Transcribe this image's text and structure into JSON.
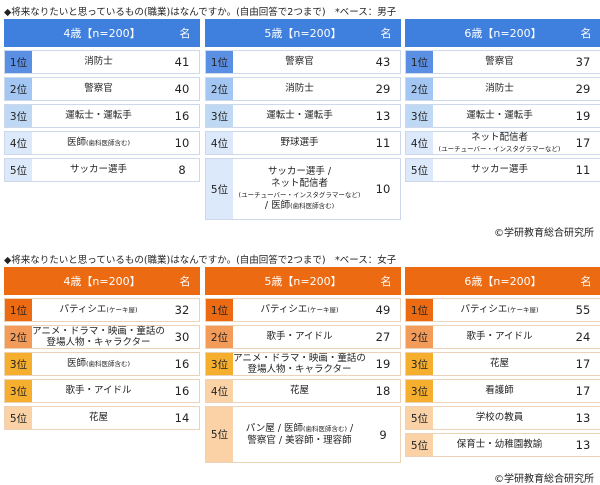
{
  "boys": {
    "title": "◆将来なりたいと思っているもの(職業)はなんですか。(自由回答で2つまで)　*ベース：男子",
    "copyright": "©学研教育総合研究所",
    "colors": {
      "header": "#3f7fdd",
      "rank": [
        "#5a8fe3",
        "#a3c7f2",
        "#bfd9f5",
        "#dce9fa",
        "#dce9fa"
      ],
      "border": "#cdd9ea"
    },
    "tables": [
      {
        "header": "4歳【n=200】",
        "unit": "名",
        "rows": [
          {
            "rank": "1位",
            "lines": [
              {
                "main": "消防士"
              }
            ],
            "count": "41"
          },
          {
            "rank": "2位",
            "lines": [
              {
                "main": "警察官"
              }
            ],
            "count": "40"
          },
          {
            "rank": "3位",
            "lines": [
              {
                "main": "運転士・運転手"
              }
            ],
            "count": "16"
          },
          {
            "rank": "4位",
            "lines": [
              {
                "main": "医師",
                "small": "(歯科医師含む)"
              }
            ],
            "count": "10"
          },
          {
            "rank": "5位",
            "lines": [
              {
                "main": "サッカー選手"
              }
            ],
            "count": "8"
          }
        ]
      },
      {
        "header": "5歳【n=200】",
        "unit": "名",
        "rows": [
          {
            "rank": "1位",
            "lines": [
              {
                "main": "警察官"
              }
            ],
            "count": "43"
          },
          {
            "rank": "2位",
            "lines": [
              {
                "main": "消防士"
              }
            ],
            "count": "29"
          },
          {
            "rank": "3位",
            "lines": [
              {
                "main": "運転士・運転手"
              }
            ],
            "count": "13"
          },
          {
            "rank": "4位",
            "lines": [
              {
                "main": "野球選手"
              }
            ],
            "count": "11"
          },
          {
            "rank": "5位",
            "lines": [
              {
                "main": "サッカー選手 /"
              },
              {
                "main": "ネット配信者"
              },
              {
                "small": "(ユーチューバー・インスタグラマーなど)"
              },
              {
                "main": "/ 医師",
                "small": "(歯科医師含む)"
              }
            ],
            "count": "10"
          }
        ]
      },
      {
        "header": "6歳【n=200】",
        "unit": "名",
        "rows": [
          {
            "rank": "1位",
            "lines": [
              {
                "main": "警察官"
              }
            ],
            "count": "37"
          },
          {
            "rank": "2位",
            "lines": [
              {
                "main": "消防士"
              }
            ],
            "count": "29"
          },
          {
            "rank": "3位",
            "lines": [
              {
                "main": "運転士・運転手"
              }
            ],
            "count": "19"
          },
          {
            "rank": "4位",
            "lines": [
              {
                "main": "ネット配信者"
              },
              {
                "small": "(ユーチューバー・インスタグラマーなど)"
              }
            ],
            "count": "17"
          },
          {
            "rank": "5位",
            "lines": [
              {
                "main": "サッカー選手"
              }
            ],
            "count": "11"
          }
        ]
      }
    ]
  },
  "girls": {
    "title": "◆将来なりたいと思っているもの(職業)はなんですか。(自由回答で2つまで)　*ベース：女子",
    "copyright": "©学研教育総合研究所",
    "colors": {
      "header": "#ec6a12",
      "rank": [
        "#ec6a12",
        "#f39b58",
        "#f5ae2e",
        "#fad2a6",
        "#fad2a6"
      ],
      "border": "#ecd3b8"
    },
    "tables": [
      {
        "header": "4歳【n=200】",
        "unit": "名",
        "rows": [
          {
            "rank": "1位",
            "r": 0,
            "lines": [
              {
                "main": "パティシエ",
                "small": "(ケーキ屋)"
              }
            ],
            "count": "32"
          },
          {
            "rank": "2位",
            "r": 1,
            "lines": [
              {
                "main": "アニメ・ドラマ・映画・童話の"
              },
              {
                "main": "登場人物・キャラクター"
              }
            ],
            "count": "30"
          },
          {
            "rank": "3位",
            "r": 2,
            "lines": [
              {
                "main": "医師",
                "small": "(歯科医師含む)"
              }
            ],
            "count": "16"
          },
          {
            "rank": "3位",
            "r": 2,
            "lines": [
              {
                "main": "歌手・アイドル"
              }
            ],
            "count": "16"
          },
          {
            "rank": "5位",
            "r": 4,
            "lines": [
              {
                "main": "花屋"
              }
            ],
            "count": "14"
          }
        ]
      },
      {
        "header": "5歳【n=200】",
        "unit": "名",
        "rows": [
          {
            "rank": "1位",
            "r": 0,
            "lines": [
              {
                "main": "パティシエ",
                "small": "(ケーキ屋)"
              }
            ],
            "count": "49"
          },
          {
            "rank": "2位",
            "r": 1,
            "lines": [
              {
                "main": "歌手・アイドル"
              }
            ],
            "count": "27"
          },
          {
            "rank": "3位",
            "r": 2,
            "lines": [
              {
                "main": "アニメ・ドラマ・映画・童話の"
              },
              {
                "main": "登場人物・キャラクター"
              }
            ],
            "count": "19"
          },
          {
            "rank": "4位",
            "r": 3,
            "lines": [
              {
                "main": "花屋"
              }
            ],
            "count": "18"
          },
          {
            "rank": "5位",
            "r": 4,
            "lines": [
              {
                "main": "パン屋 / 医師",
                "small": "(歯科医師含む)",
                "after": " /"
              },
              {
                "main": "警察官 / 美容師・理容師"
              }
            ],
            "count": "9"
          }
        ]
      },
      {
        "header": "6歳【n=200】",
        "unit": "名",
        "rows": [
          {
            "rank": "1位",
            "r": 0,
            "lines": [
              {
                "main": "パティシエ",
                "small": "(ケーキ屋)"
              }
            ],
            "count": "55"
          },
          {
            "rank": "2位",
            "r": 1,
            "lines": [
              {
                "main": "歌手・アイドル"
              }
            ],
            "count": "24"
          },
          {
            "rank": "3位",
            "r": 2,
            "lines": [
              {
                "main": "花屋"
              }
            ],
            "count": "17"
          },
          {
            "rank": "3位",
            "r": 2,
            "lines": [
              {
                "main": "看護師"
              }
            ],
            "count": "17"
          },
          {
            "rank": "5位",
            "r": 4,
            "lines": [
              {
                "main": "学校の教員"
              }
            ],
            "count": "13"
          },
          {
            "rank": "5位",
            "r": 4,
            "lines": [
              {
                "main": "保育士・幼稚園教諭"
              }
            ],
            "count": "13"
          }
        ]
      }
    ]
  }
}
